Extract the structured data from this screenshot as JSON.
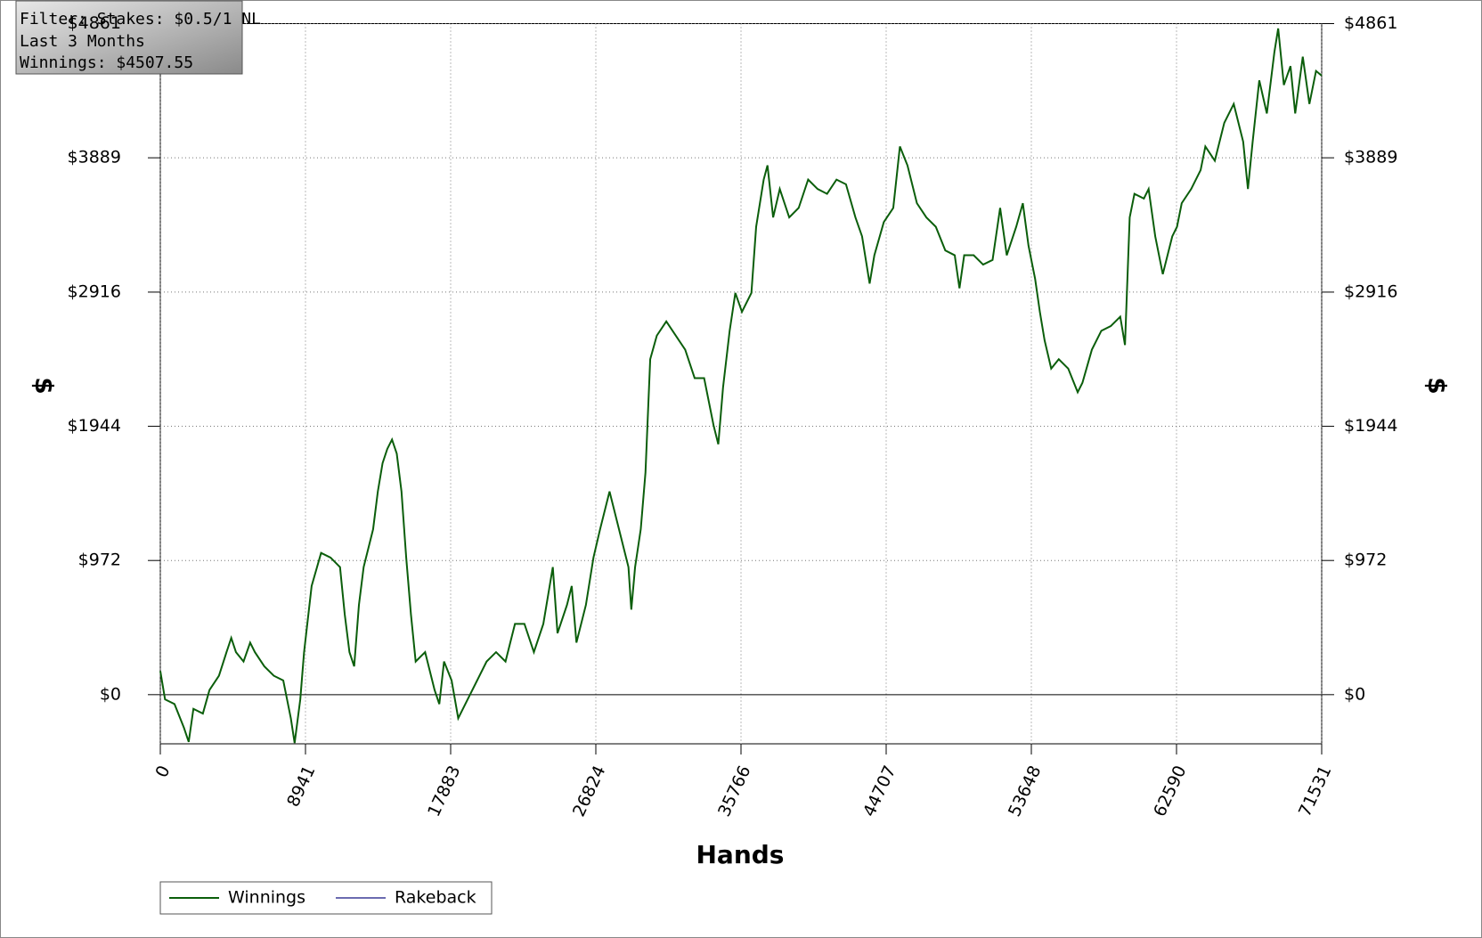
{
  "chart_data": {
    "type": "line",
    "annotations": [
      "Filter: Stakes: $0.5/1 NL",
      "Last 3 Months",
      "Winnings: $4507.55"
    ],
    "xlabel": "Hands",
    "ylabel": "$",
    "x": [
      0,
      291,
      874,
      1456,
      1748,
      2039,
      2621,
      3029,
      3612,
      4078,
      4369,
      4660,
      5126,
      5534,
      5825,
      6408,
      6990,
      7573,
      8039,
      8272,
      8621,
      8854,
      9320,
      9903,
      10485,
      11068,
      11359,
      11650,
      11941,
      12233,
      12524,
      13106,
      13398,
      13689,
      13980,
      14271,
      14563,
      14854,
      15145,
      15436,
      15728,
      16310,
      16893,
      17184,
      17475,
      17941,
      18349,
      18931,
      19514,
      20096,
      20679,
      21261,
      21844,
      22426,
      23009,
      23591,
      24174,
      24465,
      25048,
      25339,
      25630,
      26213,
      26679,
      27086,
      27669,
      28251,
      28834,
      29009,
      29242,
      29591,
      29882,
      30174,
      30581,
      31164,
      31746,
      32329,
      32911,
      33494,
      34076,
      34368,
      34659,
      35067,
      35416,
      35824,
      36406,
      36698,
      37164,
      37397,
      37746,
      38154,
      38736,
      39319,
      39901,
      40484,
      41066,
      41649,
      42231,
      42814,
      43222,
      43688,
      43979,
      44561,
      45144,
      45552,
      46018,
      46600,
      47183,
      47765,
      48348,
      48930,
      49221,
      49513,
      50095,
      50678,
      51260,
      51726,
      52134,
      52716,
      53124,
      53474,
      53881,
      54173,
      54464,
      54872,
      55338,
      55920,
      56503,
      56794,
      57376,
      57959,
      58541,
      59124,
      59415,
      59706,
      59998,
      60580,
      60871,
      61279,
      61745,
      62328,
      62619,
      62910,
      63493,
      64075,
      64366,
      64949,
      65531,
      66114,
      66696,
      66988,
      67279,
      67687,
      68153,
      68619,
      68852,
      69201,
      69609,
      69900,
      70366,
      70774,
      71182,
      71531
    ],
    "series": [
      {
        "name": "Winnings",
        "color": "#0b5e0b",
        "values": [
          171,
          -34,
          -68,
          -240,
          -342,
          -103,
          -137,
          34,
          137,
          308,
          411,
          308,
          240,
          377,
          308,
          205,
          137,
          103,
          -171,
          -350,
          -34,
          308,
          787,
          1027,
          993,
          924,
          582,
          308,
          205,
          650,
          924,
          1198,
          1472,
          1677,
          1780,
          1848,
          1746,
          1472,
          993,
          582,
          240,
          308,
          34,
          -68,
          240,
          103,
          -171,
          -34,
          103,
          240,
          308,
          240,
          513,
          513,
          308,
          513,
          924,
          445,
          650,
          787,
          377,
          650,
          993,
          1198,
          1472,
          1198,
          924,
          616,
          924,
          1198,
          1609,
          2430,
          2601,
          2704,
          2601,
          2499,
          2293,
          2293,
          1951,
          1814,
          2225,
          2636,
          2910,
          2773,
          2910,
          3389,
          3731,
          3834,
          3457,
          3663,
          3457,
          3526,
          3731,
          3663,
          3628,
          3731,
          3697,
          3457,
          3320,
          2978,
          3183,
          3423,
          3526,
          3971,
          3834,
          3560,
          3457,
          3389,
          3218,
          3183,
          2944,
          3183,
          3183,
          3115,
          3149,
          3526,
          3183,
          3389,
          3560,
          3252,
          3012,
          2773,
          2567,
          2362,
          2430,
          2362,
          2191,
          2259,
          2499,
          2636,
          2670,
          2738,
          2533,
          3457,
          3628,
          3594,
          3663,
          3320,
          3046,
          3320,
          3389,
          3560,
          3663,
          3800,
          3971,
          3868,
          4142,
          4279,
          4005,
          3663,
          4005,
          4450,
          4210,
          4655,
          4826,
          4416,
          4553,
          4210,
          4621,
          4279,
          4518,
          4484
        ]
      },
      {
        "name": "Rakeback",
        "color": "#6b6bb0"
      }
    ],
    "xlim": [
      0,
      71531
    ],
    "xticks": [
      0,
      8941,
      17883,
      26824,
      35766,
      44707,
      53648,
      62590,
      71531
    ],
    "ylim": [
      -356,
      4861
    ],
    "yticks": [
      {
        "value": 0,
        "label": "$0"
      },
      {
        "value": 972,
        "label": "$972"
      },
      {
        "value": 1944,
        "label": "$1944"
      },
      {
        "value": 2916,
        "label": "$2916"
      },
      {
        "value": 3889,
        "label": "$3889"
      },
      {
        "value": 4861,
        "label": "$4861"
      }
    ],
    "grid": true
  }
}
